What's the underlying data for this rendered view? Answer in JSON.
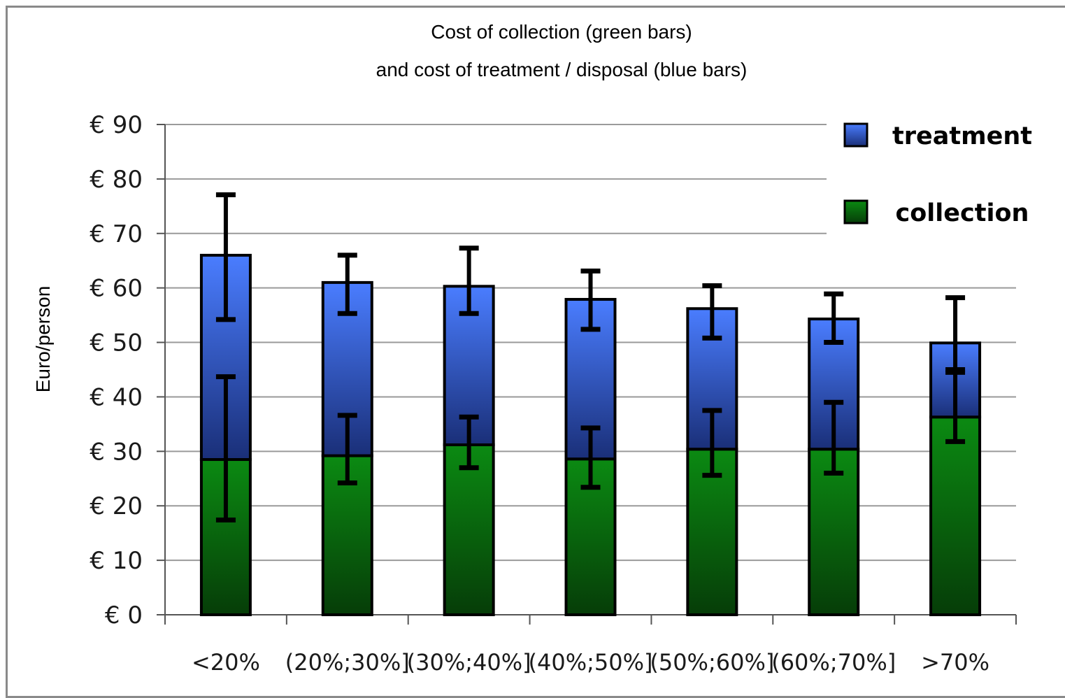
{
  "chart_data": {
    "type": "bar",
    "stacked": true,
    "title_line1": "Cost of collection (green bars)",
    "title_line2": "and cost of treatment / disposal (blue bars)",
    "ylabel": "Euro/person",
    "xlabel": "",
    "ylim": [
      0,
      90
    ],
    "yticks": [
      0,
      10,
      20,
      30,
      40,
      50,
      60,
      70,
      80,
      90
    ],
    "ytick_labels": [
      "€ 0",
      "€ 10",
      "€ 20",
      "€ 30",
      "€ 40",
      "€ 50",
      "€ 60",
      "€ 70",
      "€ 80",
      "€ 90"
    ],
    "categories": [
      "<20%",
      "(20%;30%]",
      "(30%;40%]",
      "(40%;50%]",
      "(50%;60%]",
      "(60%;70%]",
      ">70%"
    ],
    "grid": true,
    "legend_position": "top-right",
    "series": [
      {
        "name": "collection",
        "color": "#0a7a10",
        "values": [
          28.5,
          29.2,
          31.2,
          28.6,
          30.4,
          30.4,
          36.3
        ],
        "error_low": [
          17.4,
          24.2,
          27.0,
          23.4,
          25.6,
          26.0,
          31.8
        ],
        "error_high": [
          43.7,
          36.6,
          36.3,
          34.3,
          37.5,
          39.0,
          45.0
        ]
      },
      {
        "name": "treatment",
        "color": "#3f6fe6",
        "values": [
          37.5,
          31.8,
          29.1,
          29.3,
          25.8,
          23.9,
          13.6
        ],
        "error_low": [
          54.2,
          55.3,
          55.3,
          52.4,
          50.8,
          50.0,
          44.5
        ],
        "error_high": [
          77.1,
          66.0,
          67.3,
          63.1,
          60.4,
          58.9,
          58.2
        ]
      }
    ]
  }
}
